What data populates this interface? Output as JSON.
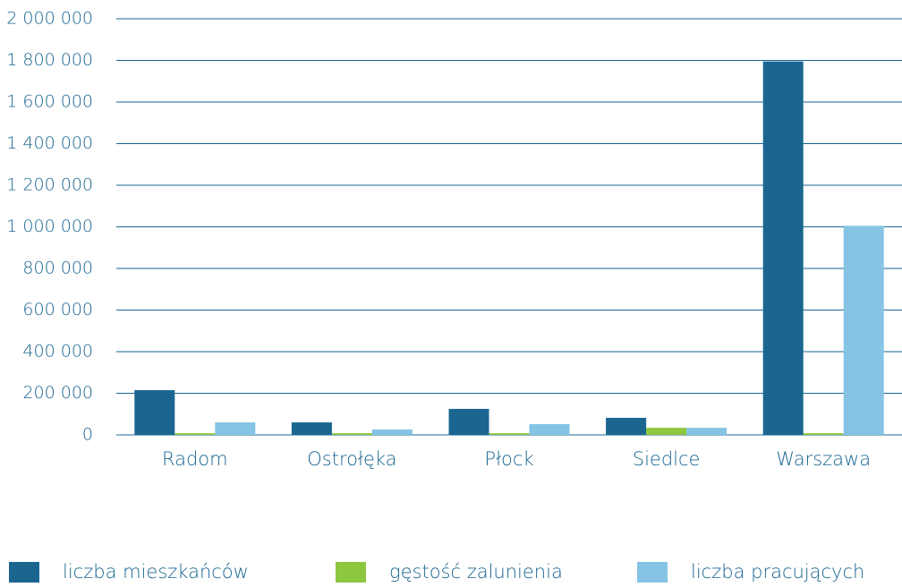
{
  "chart_data": {
    "type": "bar",
    "categories": [
      "Radom",
      "Ostrołęka",
      "Płock",
      "Siedlce",
      "Warszawa"
    ],
    "series": [
      {
        "name": "liczba mieszkańców",
        "color": "#1a6690",
        "values": [
          215000,
          60000,
          125000,
          82000,
          1795000
        ]
      },
      {
        "name": "gęstość zalunienia",
        "color": "#8dc63f",
        "values": [
          8000,
          8000,
          8000,
          34000,
          8000
        ]
      },
      {
        "name": "liczba pracujących",
        "color": "#85c4e4",
        "values": [
          60000,
          26000,
          52000,
          34000,
          1005000
        ]
      }
    ],
    "ylim": [
      0,
      2000000
    ],
    "yticks": [
      0,
      {
        "value": 200000,
        "label": "200 000"
      },
      {
        "value": 400000,
        "label": "400 000"
      },
      {
        "value": 600000,
        "label": "600 000"
      },
      {
        "value": 800000,
        "label": "800 000"
      },
      {
        "value": 1000000,
        "label": "1 000 000"
      },
      {
        "value": 1200000,
        "label": "1 200 000"
      },
      {
        "value": 1400000,
        "label": "1 400 000"
      },
      {
        "value": 1600000,
        "label": "1 600 000"
      },
      {
        "value": 1800000,
        "label": "1 800 000"
      },
      {
        "value": 2000000,
        "label": "2 000 000"
      }
    ],
    "grid": true,
    "legend": "bottom"
  }
}
